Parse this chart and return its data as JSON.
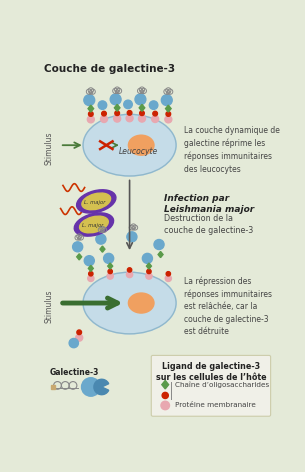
{
  "bg_color": "#e4ead8",
  "title": "Couche de galectine-3",
  "cell_color": "#c5dce8",
  "cell_edge": "#90b8cc",
  "nucleus_color": "#f0a060",
  "text_right1": "La couche dynamique de\ngalectine réprime les\nréponses immunitaires\ndes leucocytes",
  "text_infection_bold": "Infection par\nLeishmania major",
  "text_destruction": "Destruction de la\ncouche de galectine-3",
  "text_right2": "La répression des\nréponses immunitaires\nest relâchée, car la\ncouche de galectine-3\nest détruite",
  "legend_title": "Ligand de galectine-3\nsur les cellules de l’hôte",
  "legend_item1": "Chaîne d’oligosaccharides",
  "legend_item2": "Protéine membranaire",
  "galectine3_label": "Galectine-3",
  "dark_green": "#3a6e30",
  "arrow_green": "#4a7a3a",
  "red_color": "#cc2200",
  "pink_color": "#e8a8b0",
  "blue_color": "#6aa8cc",
  "green_diamond": "#5a9a4a",
  "purple_color": "#6633aa",
  "yellow_color": "#d4c050",
  "gray_protein": "#aaaaaa",
  "stimulus_color": "#555555",
  "leucocyte_label": "Leucocyte"
}
